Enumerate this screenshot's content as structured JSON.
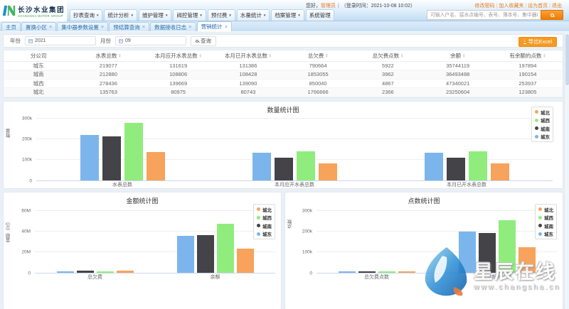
{
  "header": {
    "logo": {
      "title": "长沙水业集团",
      "subtitle": "CHANGSHA WATER GROUP"
    },
    "menu": [
      {
        "label": "抄表查询",
        "arrow": true
      },
      {
        "label": "统计分析",
        "arrow": true
      },
      {
        "label": "维护管理",
        "arrow": true
      },
      {
        "label": "阀控管理",
        "arrow": true
      },
      {
        "label": "预付费",
        "arrow": true
      },
      {
        "label": "水量统计",
        "arrow": true
      },
      {
        "label": "档案管理",
        "arrow": true
      },
      {
        "label": "系统管理",
        "arrow": false
      }
    ],
    "greeting": {
      "hello": "您好，",
      "user": "管理员",
      "sep": "|",
      "login_time": "（登录时间：2021-10-08 10:02）"
    },
    "links": [
      "修改密码",
      "加入收藏夹",
      "设为首页",
      "退出"
    ],
    "search": {
      "placeholder": "可输入户名、接水点编号、表号、簿本号、集中器编号"
    }
  },
  "tabs": [
    {
      "label": "主页",
      "closable": false,
      "active": false
    },
    {
      "label": "置换小区",
      "closable": true,
      "active": false
    },
    {
      "label": "集中器参数设置",
      "closable": true,
      "active": false
    },
    {
      "label": "预结算查询",
      "closable": true,
      "active": false
    },
    {
      "label": "数据接收日志",
      "closable": true,
      "active": false
    },
    {
      "label": "营销统计",
      "closable": true,
      "active": true
    }
  ],
  "filters": {
    "year_label": "年份",
    "year_value": "2021",
    "month_label": "月份",
    "month_value": "09",
    "search_button": "查询",
    "export_button": "导出Excel"
  },
  "table": {
    "columns": [
      {
        "label": "分公司",
        "sortable": false
      },
      {
        "label": "水表总数",
        "sortable": true
      },
      {
        "label": "本月应开水表总数",
        "sortable": true
      },
      {
        "label": "本月已开水表总数",
        "sortable": true
      },
      {
        "label": "总欠费",
        "sortable": true
      },
      {
        "label": "总欠费点数",
        "sortable": true
      },
      {
        "label": "余额",
        "sortable": true
      },
      {
        "label": "有余额的点数",
        "sortable": true
      }
    ],
    "rows": [
      [
        "城东",
        "219077",
        "131619",
        "131386",
        "790664",
        "5922",
        "35744119",
        "197894"
      ],
      [
        "城南",
        "212880",
        "108806",
        "108428",
        "1853055",
        "3962",
        "36493488",
        "190154"
      ],
      [
        "城西",
        "278436",
        "139669",
        "139090",
        "850040",
        "4867",
        "47340021",
        "253937"
      ],
      [
        "城北",
        "135763",
        "80975",
        "80743",
        "1766666",
        "2366",
        "23250604",
        "123805"
      ]
    ]
  },
  "chart_data": [
    {
      "type": "bar",
      "title": "数量统计图",
      "ylabel": "数量",
      "ymax": 300000,
      "yticks": [
        "0",
        "100k",
        "200k",
        "300k"
      ],
      "categories": [
        "水表总数",
        "本月应开水表总数",
        "本月已开水表总数"
      ],
      "series": [
        {
          "name": "城东",
          "color": "#7cb5ec",
          "values": [
            219077,
            131619,
            131386
          ]
        },
        {
          "name": "城南",
          "color": "#434348",
          "values": [
            212880,
            108806,
            108428
          ]
        },
        {
          "name": "城西",
          "color": "#90ed7d",
          "values": [
            278436,
            139669,
            139090
          ]
        },
        {
          "name": "城北",
          "color": "#f7a35c",
          "values": [
            135763,
            80975,
            80743
          ]
        }
      ],
      "legend_position": "top-right",
      "legend_reversed": true,
      "grid": true
    },
    {
      "type": "bar",
      "title": "金额统计图",
      "ylabel": "金额（元）",
      "ymax": 60000000,
      "yticks": [
        "0",
        "20M",
        "40M",
        "60M"
      ],
      "categories": [
        "总欠费",
        "余额"
      ],
      "series": [
        {
          "name": "城东",
          "color": "#7cb5ec",
          "values": [
            790664,
            35744119
          ]
        },
        {
          "name": "城南",
          "color": "#434348",
          "values": [
            1853055,
            36493488
          ]
        },
        {
          "name": "城西",
          "color": "#90ed7d",
          "values": [
            850040,
            47340021
          ]
        },
        {
          "name": "城北",
          "color": "#f7a35c",
          "values": [
            1766666,
            23250604
          ]
        }
      ],
      "legend_position": "top-right",
      "legend_reversed": true,
      "grid": true
    },
    {
      "type": "bar",
      "title": "点数统计图",
      "ylabel": "点数",
      "ymax": 300000,
      "yticks": [
        "0",
        "100k",
        "200k",
        "300k"
      ],
      "categories": [
        "总欠费点数",
        "有余额的点数"
      ],
      "series": [
        {
          "name": "城东",
          "color": "#7cb5ec",
          "values": [
            5922,
            197894
          ]
        },
        {
          "name": "城南",
          "color": "#434348",
          "values": [
            3962,
            190154
          ]
        },
        {
          "name": "城西",
          "color": "#90ed7d",
          "values": [
            4867,
            253937
          ]
        },
        {
          "name": "城北",
          "color": "#f7a35c",
          "values": [
            2366,
            123805
          ]
        }
      ],
      "legend_position": "top-right",
      "legend_reversed": true,
      "grid": true
    }
  ],
  "watermark": {
    "line1": "星辰在线",
    "line2": "www.changsha.cn"
  },
  "colors": {
    "accent_orange": "#f59a23",
    "header_blue": "#cfe6f7",
    "series_blue": "#7cb5ec",
    "series_black": "#434348",
    "series_green": "#90ed7d",
    "series_orange": "#f7a35c"
  }
}
